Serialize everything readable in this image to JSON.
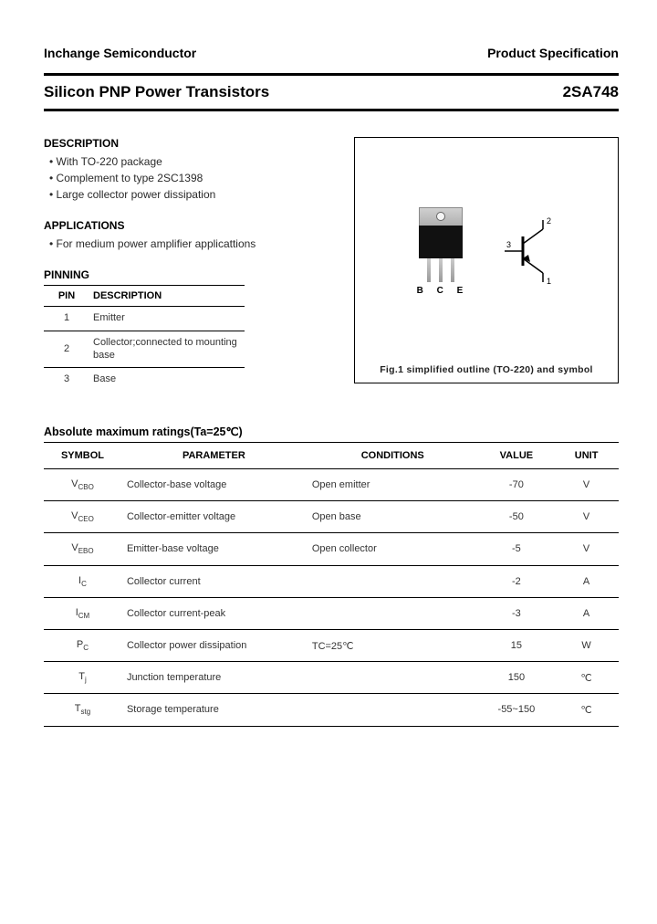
{
  "header": {
    "company": "Inchange Semiconductor",
    "doc_type": "Product Specification"
  },
  "title": {
    "product_line": "Silicon PNP Power Transistors",
    "part_number": "2SA748"
  },
  "description": {
    "heading": "DESCRIPTION",
    "items": [
      "With TO-220 package",
      "Complement to type 2SC1398",
      "Large collector power dissipation"
    ]
  },
  "applications": {
    "heading": "APPLICATIONS",
    "items": [
      "For medium power amplifier applicattions"
    ]
  },
  "pinning": {
    "heading": "PINNING",
    "columns": [
      "PIN",
      "DESCRIPTION"
    ],
    "rows": [
      {
        "pin": "1",
        "desc": "Emitter"
      },
      {
        "pin": "2",
        "desc": "Collector;connected to mounting base"
      },
      {
        "pin": "3",
        "desc": "Base"
      }
    ]
  },
  "figure": {
    "caption": "Fig.1 simplified outline (TO-220) and symbol",
    "lead_labels": "B C E",
    "symbol_pins": {
      "p1": "1",
      "p2": "2",
      "p3": "3"
    }
  },
  "ratings": {
    "heading": "Absolute maximum ratings(Ta=25℃)",
    "columns": [
      "SYMBOL",
      "PARAMETER",
      "CONDITIONS",
      "VALUE",
      "UNIT"
    ],
    "rows": [
      {
        "symbol_main": "V",
        "symbol_sub": "CBO",
        "parameter": "Collector-base voltage",
        "conditions": "Open emitter",
        "value": "-70",
        "unit": "V"
      },
      {
        "symbol_main": "V",
        "symbol_sub": "CEO",
        "parameter": "Collector-emitter voltage",
        "conditions": "Open base",
        "value": "-50",
        "unit": "V"
      },
      {
        "symbol_main": "V",
        "symbol_sub": "EBO",
        "parameter": "Emitter-base voltage",
        "conditions": "Open collector",
        "value": "-5",
        "unit": "V"
      },
      {
        "symbol_main": "I",
        "symbol_sub": "C",
        "parameter": "Collector current",
        "conditions": "",
        "value": "-2",
        "unit": "A"
      },
      {
        "symbol_main": "I",
        "symbol_sub": "CM",
        "parameter": "Collector current-peak",
        "conditions": "",
        "value": "-3",
        "unit": "A"
      },
      {
        "symbol_main": "P",
        "symbol_sub": "C",
        "parameter": "Collector power dissipation",
        "conditions": "TC=25℃",
        "value": "15",
        "unit": "W"
      },
      {
        "symbol_main": "T",
        "symbol_sub": "j",
        "parameter": "Junction temperature",
        "conditions": "",
        "value": "150",
        "unit": "℃"
      },
      {
        "symbol_main": "T",
        "symbol_sub": "stg",
        "parameter": "Storage temperature",
        "conditions": "",
        "value": "-55~150",
        "unit": "℃"
      }
    ]
  },
  "colors": {
    "text": "#000000",
    "body_text": "#333333",
    "border": "#000000",
    "background": "#ffffff"
  }
}
